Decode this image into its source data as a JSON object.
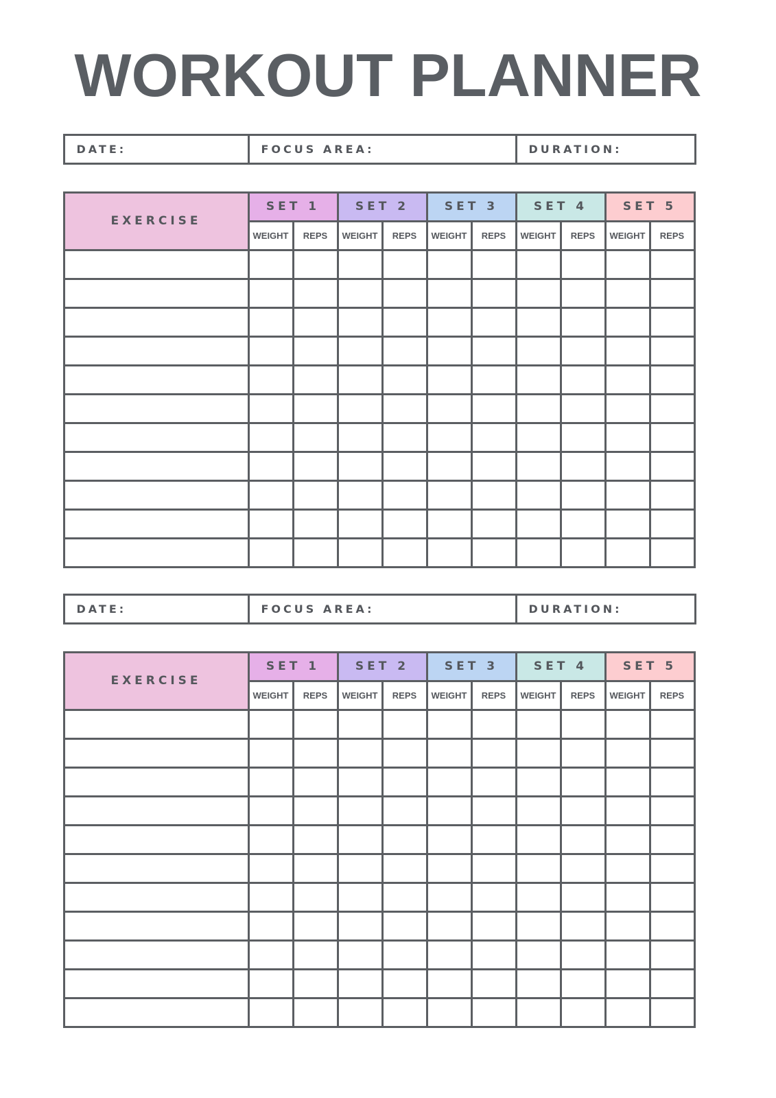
{
  "title": "WORKOUT PLANNER",
  "colors": {
    "border": "#5b5e62",
    "exercise": "#eec3df",
    "set_colors": [
      "#e6b0e8",
      "#c9baf2",
      "#bcd5f3",
      "#c9e8e6",
      "#fdcdd0"
    ]
  },
  "sections": [
    {
      "info": {
        "date_label": "DATE:",
        "focus_label": "FOCUS AREA:",
        "duration_label": "DURATION:"
      },
      "table": {
        "exercise_header": "EXERCISE",
        "sets": [
          "SET 1",
          "SET 2",
          "SET 3",
          "SET 4",
          "SET 5"
        ],
        "sub_headers": [
          "WEIGHT",
          "REPS"
        ],
        "row_count": 11
      }
    },
    {
      "info": {
        "date_label": "DATE:",
        "focus_label": "FOCUS AREA:",
        "duration_label": "DURATION:"
      },
      "table": {
        "exercise_header": "EXERCISE",
        "sets": [
          "SET 1",
          "SET 2",
          "SET 3",
          "SET 4",
          "SET 5"
        ],
        "sub_headers": [
          "WEIGHT",
          "REPS"
        ],
        "row_count": 11
      }
    }
  ]
}
